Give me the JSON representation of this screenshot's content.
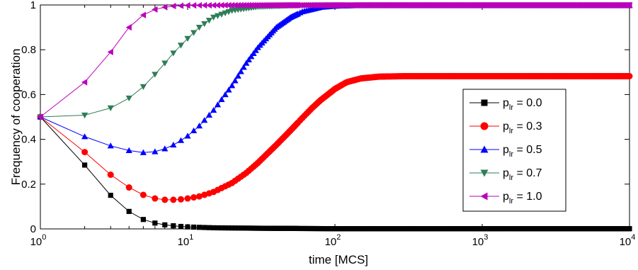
{
  "chart_data": {
    "type": "line",
    "title": "",
    "xlabel": "time [MCS]",
    "ylabel": "Frequency of cooperation",
    "xscale": "log",
    "xlim": [
      1,
      10000
    ],
    "ylim": [
      0,
      1
    ],
    "x_ticks": [
      1,
      10,
      100,
      1000,
      10000
    ],
    "x_tick_labels": [
      {
        "base": "10",
        "exp": "0"
      },
      {
        "base": "10",
        "exp": "1"
      },
      {
        "base": "10",
        "exp": "2"
      },
      {
        "base": "10",
        "exp": "3"
      },
      {
        "base": "10",
        "exp": "4"
      }
    ],
    "y_ticks": [
      0,
      0.2,
      0.4,
      0.6,
      0.8,
      1
    ],
    "y_tick_labels": [
      "0",
      "0.2",
      "0.4",
      "0.6",
      "0.8",
      "1"
    ],
    "grid": false,
    "legend_position": "right",
    "series": [
      {
        "legend_prefix": "p",
        "legend_sub": "lr",
        "legend_suffix": " = 0.0",
        "color": "#000000",
        "marker": "square",
        "points": [
          [
            1,
            0.5
          ],
          [
            2,
            0.285
          ],
          [
            3,
            0.15
          ],
          [
            4,
            0.078
          ],
          [
            5,
            0.042
          ],
          [
            6,
            0.026
          ],
          [
            7,
            0.018
          ],
          [
            8,
            0.014
          ],
          [
            9,
            0.011
          ],
          [
            10,
            0.009
          ],
          [
            12,
            0.007
          ],
          [
            15,
            0.005
          ],
          [
            20,
            0.004
          ],
          [
            30,
            0.003
          ],
          [
            50,
            0.002
          ],
          [
            100,
            0.001
          ],
          [
            1000,
            0.001
          ],
          [
            10000,
            0.001
          ]
        ]
      },
      {
        "legend_prefix": "p",
        "legend_sub": "lr",
        "legend_suffix": " = 0.3",
        "color": "#ff0000",
        "marker": "circle",
        "points": [
          [
            1,
            0.5
          ],
          [
            2,
            0.343
          ],
          [
            3,
            0.242
          ],
          [
            4,
            0.185
          ],
          [
            5,
            0.152
          ],
          [
            6,
            0.136
          ],
          [
            7,
            0.13
          ],
          [
            8,
            0.13
          ],
          [
            9,
            0.132
          ],
          [
            10,
            0.136
          ],
          [
            12,
            0.145
          ],
          [
            15,
            0.165
          ],
          [
            20,
            0.205
          ],
          [
            25,
            0.25
          ],
          [
            30,
            0.295
          ],
          [
            40,
            0.375
          ],
          [
            50,
            0.44
          ],
          [
            60,
            0.495
          ],
          [
            70,
            0.54
          ],
          [
            80,
            0.575
          ],
          [
            100,
            0.625
          ],
          [
            120,
            0.655
          ],
          [
            150,
            0.672
          ],
          [
            200,
            0.68
          ],
          [
            300,
            0.682
          ],
          [
            1000,
            0.682
          ],
          [
            10000,
            0.682
          ]
        ]
      },
      {
        "legend_prefix": "p",
        "legend_sub": "lr",
        "legend_suffix": " = 0.5",
        "color": "#0000ff",
        "marker": "triangle-up",
        "points": [
          [
            1,
            0.5
          ],
          [
            2,
            0.412
          ],
          [
            3,
            0.371
          ],
          [
            4,
            0.35
          ],
          [
            5,
            0.341
          ],
          [
            6,
            0.345
          ],
          [
            7,
            0.358
          ],
          [
            8,
            0.375
          ],
          [
            9,
            0.395
          ],
          [
            10,
            0.415
          ],
          [
            12,
            0.46
          ],
          [
            15,
            0.53
          ],
          [
            20,
            0.64
          ],
          [
            25,
            0.74
          ],
          [
            30,
            0.81
          ],
          [
            40,
            0.9
          ],
          [
            50,
            0.945
          ],
          [
            60,
            0.97
          ],
          [
            80,
            0.99
          ],
          [
            100,
            0.995
          ],
          [
            150,
            0.998
          ],
          [
            1000,
            0.998
          ],
          [
            10000,
            0.998
          ]
        ]
      },
      {
        "legend_prefix": "p",
        "legend_sub": "lr",
        "legend_suffix": " = 0.7",
        "color": "#2e7d57",
        "marker": "triangle-down",
        "points": [
          [
            1,
            0.5
          ],
          [
            2,
            0.508
          ],
          [
            3,
            0.54
          ],
          [
            4,
            0.584
          ],
          [
            5,
            0.635
          ],
          [
            6,
            0.69
          ],
          [
            7,
            0.74
          ],
          [
            8,
            0.785
          ],
          [
            9,
            0.82
          ],
          [
            10,
            0.85
          ],
          [
            12,
            0.9
          ],
          [
            15,
            0.945
          ],
          [
            20,
            0.975
          ],
          [
            30,
            0.992
          ],
          [
            50,
            0.998
          ],
          [
            100,
            0.999
          ],
          [
            1000,
            0.999
          ],
          [
            10000,
            0.999
          ]
        ]
      },
      {
        "legend_prefix": "p",
        "legend_sub": "lr",
        "legend_suffix": " = 1.0",
        "color": "#bb00bb",
        "marker": "triangle-left",
        "points": [
          [
            1,
            0.5
          ],
          [
            2,
            0.655
          ],
          [
            3,
            0.79
          ],
          [
            4,
            0.9
          ],
          [
            5,
            0.955
          ],
          [
            6,
            0.98
          ],
          [
            7,
            0.99
          ],
          [
            8,
            0.995
          ],
          [
            10,
            0.998
          ],
          [
            20,
            0.999
          ],
          [
            100,
            0.999
          ],
          [
            1000,
            0.999
          ],
          [
            10000,
            0.999
          ]
        ]
      }
    ]
  }
}
